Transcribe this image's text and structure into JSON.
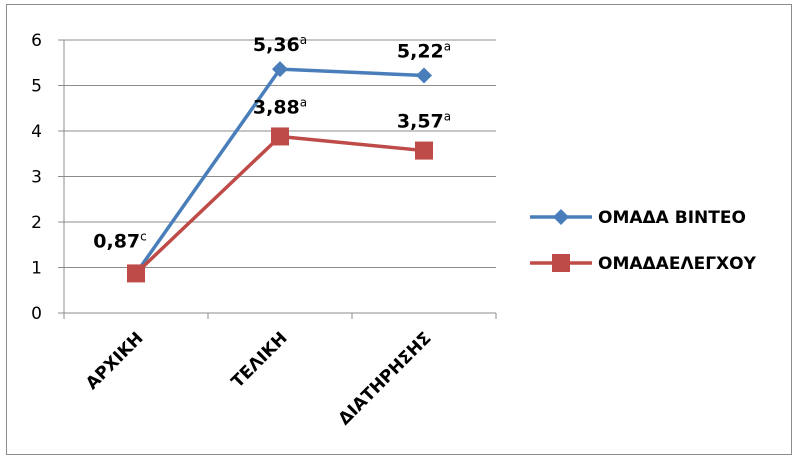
{
  "chart_data": {
    "type": "line",
    "categories": [
      "ΑΡΧΙΚΗ",
      "ΤΕΛΙΚΗ",
      "ΔΙΑΤΗΡΗΣΗΣ"
    ],
    "series": [
      {
        "name": "ΟΜΑΔΑ ΒΙΝΤΕΟ",
        "values": [
          0.87,
          5.36,
          5.22
        ],
        "color": "#4a7ebb",
        "marker": "diamond",
        "labels": [
          {
            "text": "",
            "sup": ""
          },
          {
            "text": "5,36",
            "sup": "a"
          },
          {
            "text": "5,22",
            "sup": "a"
          }
        ]
      },
      {
        "name": "ΟΜΑΔΑΕΛΕΓΧΟΥ",
        "values": [
          0.87,
          3.88,
          3.57
        ],
        "color": "#be4b48",
        "marker": "square",
        "labels": [
          {
            "text": "0,87",
            "sup": "c"
          },
          {
            "text": "3,88",
            "sup": "a"
          },
          {
            "text": "3,57",
            "sup": "a"
          }
        ]
      }
    ],
    "yticks": [
      "0",
      "1",
      "2",
      "3",
      "4",
      "5",
      "6"
    ],
    "ylim": [
      0,
      6
    ],
    "grid": true,
    "legend_position": "right",
    "title": "",
    "xlabel": "",
    "ylabel": ""
  }
}
